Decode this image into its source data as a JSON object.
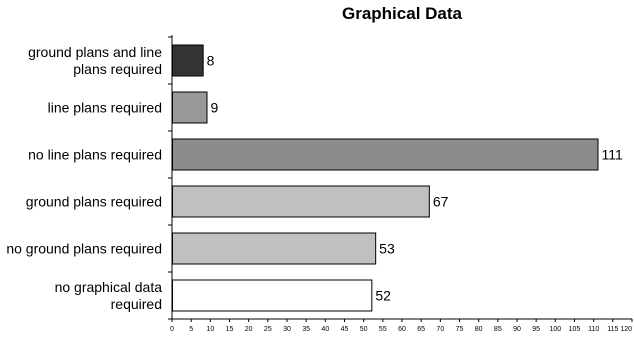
{
  "chart_data": {
    "type": "bar",
    "orientation": "horizontal",
    "title": "Graphical Data",
    "categories": [
      [
        "ground plans and line",
        "plans required"
      ],
      [
        "line plans required"
      ],
      [
        "no line plans required"
      ],
      [
        "ground plans required"
      ],
      [
        "no ground plans required"
      ],
      [
        "no graphical data",
        "required"
      ]
    ],
    "values": [
      8,
      9,
      111,
      67,
      53,
      52
    ],
    "colors": [
      "#333333",
      "#999999",
      "#8c8c8c",
      "#c0c0c0",
      "#c0c0c0",
      "#ffffff"
    ],
    "xlim": [
      0,
      120
    ],
    "x_tick_step": 5,
    "x_tick_labels": [
      "0",
      "5",
      "10",
      "15",
      "20",
      "25",
      "30",
      "35",
      "40",
      "45",
      "50",
      "55",
      "60",
      "65",
      "70",
      "75",
      "80",
      "85",
      "90",
      "95",
      "100",
      "105",
      "110",
      "115",
      "120"
    ],
    "grid": false,
    "legend": "none"
  }
}
